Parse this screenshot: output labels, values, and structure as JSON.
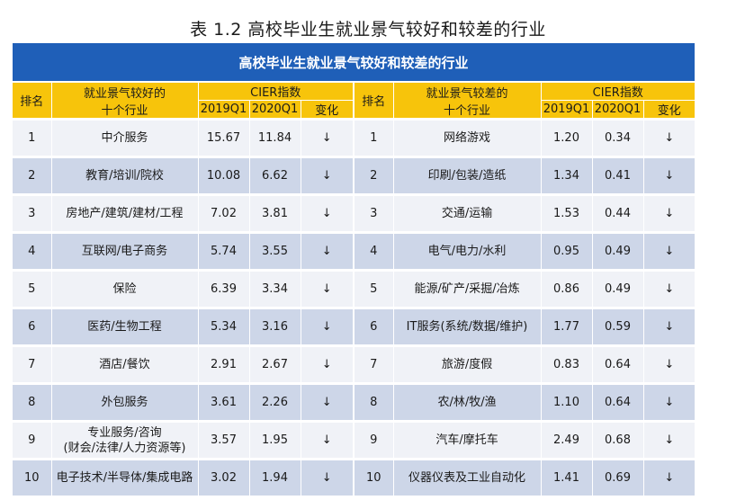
{
  "caption": "表 1.2 高校毕业生就业景气较好和较差的行业",
  "banner": "高校毕业生就业景气较好和较差的行业",
  "headers": {
    "rank": "排名",
    "good_industry_line1": "就业景气较好的",
    "good_industry_line2": "十个行业",
    "cier": "CIER指数",
    "y2019": "2019Q1",
    "y2020": "2020Q1",
    "change": "变化",
    "bad_industry_line1": "就业景气较差的",
    "bad_industry_line2": "十个行业"
  },
  "rows": [
    {
      "rank": "1",
      "good": "中介服务",
      "g19": "15.67",
      "g20": "11.84",
      "gchg": "↓",
      "rank2": "1",
      "bad": "网络游戏",
      "b19": "1.20",
      "b20": "0.34",
      "bchg": "↓"
    },
    {
      "rank": "2",
      "good": "教育/培训/院校",
      "g19": "10.08",
      "g20": "6.62",
      "gchg": "↓",
      "rank2": "2",
      "bad": "印刷/包装/造纸",
      "b19": "1.34",
      "b20": "0.41",
      "bchg": "↓"
    },
    {
      "rank": "3",
      "good": "房地产/建筑/建材/工程",
      "g19": "7.02",
      "g20": "3.81",
      "gchg": "↓",
      "rank2": "3",
      "bad": "交通/运输",
      "b19": "1.53",
      "b20": "0.44",
      "bchg": "↓"
    },
    {
      "rank": "4",
      "good": "互联网/电子商务",
      "g19": "5.74",
      "g20": "3.55",
      "gchg": "↓",
      "rank2": "4",
      "bad": "电气/电力/水利",
      "b19": "0.95",
      "b20": "0.49",
      "bchg": "↓"
    },
    {
      "rank": "5",
      "good": "保险",
      "g19": "6.39",
      "g20": "3.34",
      "gchg": "↓",
      "rank2": "5",
      "bad": "能源/矿产/采掘/冶炼",
      "b19": "0.86",
      "b20": "0.49",
      "bchg": "↓"
    },
    {
      "rank": "6",
      "good": "医药/生物工程",
      "g19": "5.34",
      "g20": "3.16",
      "gchg": "↓",
      "rank2": "6",
      "bad": "IT服务(系统/数据/维护)",
      "b19": "1.77",
      "b20": "0.59",
      "bchg": "↓"
    },
    {
      "rank": "7",
      "good": "酒店/餐饮",
      "g19": "2.91",
      "g20": "2.67",
      "gchg": "↓",
      "rank2": "7",
      "bad": "旅游/度假",
      "b19": "0.83",
      "b20": "0.64",
      "bchg": "↓"
    },
    {
      "rank": "8",
      "good": "外包服务",
      "g19": "3.61",
      "g20": "2.26",
      "gchg": "↓",
      "rank2": "8",
      "bad": "农/林/牧/渔",
      "b19": "1.10",
      "b20": "0.64",
      "bchg": "↓"
    },
    {
      "rank": "9",
      "good": "专业服务/咨询",
      "good2": "(财会/法律/人力资源等)",
      "g19": "3.57",
      "g20": "1.95",
      "gchg": "↓",
      "rank2": "9",
      "bad": "汽车/摩托车",
      "b19": "2.49",
      "b20": "0.68",
      "bchg": "↓"
    },
    {
      "rank": "10",
      "good": "电子技术/半导体/集成电路",
      "g19": "3.02",
      "g20": "1.94",
      "gchg": "↓",
      "rank2": "10",
      "bad": "仪器仪表及工业自动化",
      "b19": "1.41",
      "b20": "0.69",
      "bchg": "↓"
    }
  ]
}
